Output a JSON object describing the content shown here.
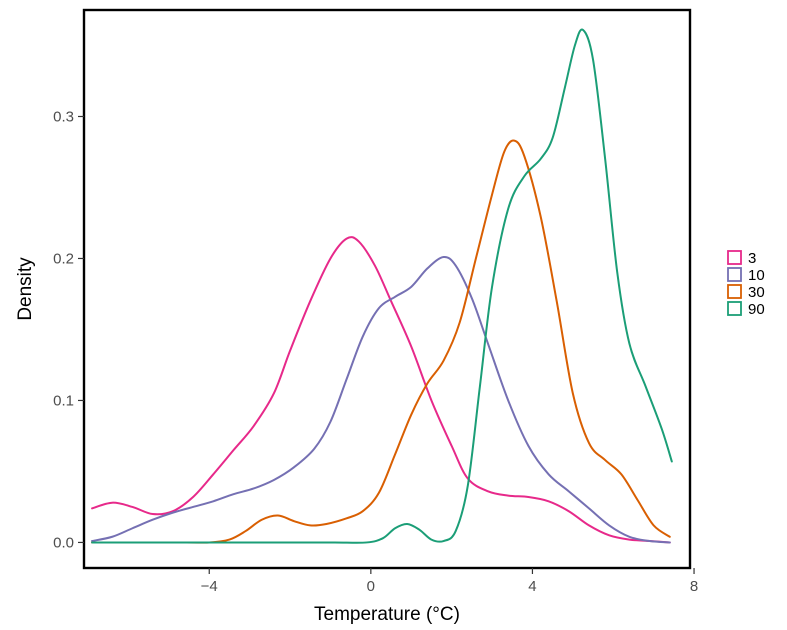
{
  "chart_data": {
    "type": "line",
    "title": "",
    "xlabel": "Temperature (°C)",
    "ylabel": "Density",
    "xlim": [
      -7.1,
      7.9
    ],
    "ylim": [
      -0.018,
      0.375
    ],
    "x_ticks": [
      -4,
      0,
      4,
      8
    ],
    "x_tick_labels": [
      "−4",
      "0",
      "4",
      "8"
    ],
    "y_ticks": [
      0.0,
      0.1,
      0.2,
      0.3
    ],
    "y_tick_labels": [
      "0.0",
      "0.1",
      "0.2",
      "0.3"
    ],
    "grid": false,
    "legend_position": "right",
    "series": [
      {
        "name": "3",
        "color": "#e7298a",
        "points": [
          [
            -6.9,
            0.024
          ],
          [
            -6.4,
            0.028
          ],
          [
            -5.9,
            0.025
          ],
          [
            -5.4,
            0.02
          ],
          [
            -4.9,
            0.022
          ],
          [
            -4.4,
            0.032
          ],
          [
            -3.9,
            0.048
          ],
          [
            -3.4,
            0.065
          ],
          [
            -2.9,
            0.082
          ],
          [
            -2.4,
            0.105
          ],
          [
            -2.0,
            0.135
          ],
          [
            -1.5,
            0.17
          ],
          [
            -1.0,
            0.2
          ],
          [
            -0.6,
            0.214
          ],
          [
            -0.3,
            0.212
          ],
          [
            0.1,
            0.195
          ],
          [
            0.5,
            0.17
          ],
          [
            1.0,
            0.138
          ],
          [
            1.5,
            0.1
          ],
          [
            2.0,
            0.068
          ],
          [
            2.4,
            0.045
          ],
          [
            2.9,
            0.036
          ],
          [
            3.4,
            0.033
          ],
          [
            3.9,
            0.032
          ],
          [
            4.4,
            0.029
          ],
          [
            4.9,
            0.022
          ],
          [
            5.4,
            0.012
          ],
          [
            5.9,
            0.005
          ],
          [
            6.4,
            0.002
          ],
          [
            6.9,
            0.001
          ],
          [
            7.4,
            0.0
          ]
        ]
      },
      {
        "name": "10",
        "color": "#7570b3",
        "points": [
          [
            -6.9,
            0.001
          ],
          [
            -6.4,
            0.004
          ],
          [
            -5.9,
            0.01
          ],
          [
            -5.4,
            0.016
          ],
          [
            -4.9,
            0.021
          ],
          [
            -4.4,
            0.025
          ],
          [
            -3.9,
            0.029
          ],
          [
            -3.4,
            0.034
          ],
          [
            -2.9,
            0.038
          ],
          [
            -2.4,
            0.044
          ],
          [
            -1.9,
            0.053
          ],
          [
            -1.4,
            0.066
          ],
          [
            -1.0,
            0.085
          ],
          [
            -0.6,
            0.115
          ],
          [
            -0.2,
            0.145
          ],
          [
            0.2,
            0.165
          ],
          [
            0.6,
            0.173
          ],
          [
            1.0,
            0.18
          ],
          [
            1.4,
            0.193
          ],
          [
            1.8,
            0.201
          ],
          [
            2.1,
            0.195
          ],
          [
            2.5,
            0.172
          ],
          [
            2.9,
            0.14
          ],
          [
            3.4,
            0.1
          ],
          [
            3.9,
            0.068
          ],
          [
            4.4,
            0.048
          ],
          [
            4.9,
            0.036
          ],
          [
            5.4,
            0.024
          ],
          [
            5.9,
            0.012
          ],
          [
            6.4,
            0.004
          ],
          [
            6.9,
            0.001
          ],
          [
            7.4,
            0.0
          ]
        ]
      },
      {
        "name": "30",
        "color": "#d95f02",
        "points": [
          [
            -6.9,
            0.0
          ],
          [
            -5.9,
            0.0
          ],
          [
            -4.9,
            0.0
          ],
          [
            -4.0,
            0.0
          ],
          [
            -3.5,
            0.002
          ],
          [
            -3.1,
            0.008
          ],
          [
            -2.7,
            0.016
          ],
          [
            -2.3,
            0.019
          ],
          [
            -1.9,
            0.015
          ],
          [
            -1.5,
            0.012
          ],
          [
            -1.1,
            0.013
          ],
          [
            -0.6,
            0.017
          ],
          [
            -0.2,
            0.022
          ],
          [
            0.2,
            0.035
          ],
          [
            0.6,
            0.062
          ],
          [
            1.0,
            0.09
          ],
          [
            1.4,
            0.112
          ],
          [
            1.8,
            0.128
          ],
          [
            2.2,
            0.155
          ],
          [
            2.6,
            0.2
          ],
          [
            3.0,
            0.245
          ],
          [
            3.3,
            0.275
          ],
          [
            3.55,
            0.283
          ],
          [
            3.8,
            0.272
          ],
          [
            4.2,
            0.23
          ],
          [
            4.6,
            0.17
          ],
          [
            5.0,
            0.105
          ],
          [
            5.4,
            0.07
          ],
          [
            5.8,
            0.058
          ],
          [
            6.2,
            0.048
          ],
          [
            6.6,
            0.03
          ],
          [
            7.0,
            0.012
          ],
          [
            7.4,
            0.004
          ]
        ]
      },
      {
        "name": "90",
        "color": "#1b9e77",
        "points": [
          [
            -6.9,
            0.0
          ],
          [
            -5.9,
            0.0
          ],
          [
            -4.9,
            0.0
          ],
          [
            -3.9,
            0.0
          ],
          [
            -2.9,
            0.0
          ],
          [
            -1.9,
            0.0
          ],
          [
            -0.9,
            0.0
          ],
          [
            -0.1,
            0.0
          ],
          [
            0.3,
            0.003
          ],
          [
            0.6,
            0.01
          ],
          [
            0.9,
            0.013
          ],
          [
            1.2,
            0.009
          ],
          [
            1.5,
            0.002
          ],
          [
            1.8,
            0.001
          ],
          [
            2.1,
            0.008
          ],
          [
            2.4,
            0.04
          ],
          [
            2.7,
            0.11
          ],
          [
            3.0,
            0.18
          ],
          [
            3.4,
            0.235
          ],
          [
            3.8,
            0.258
          ],
          [
            4.2,
            0.27
          ],
          [
            4.5,
            0.285
          ],
          [
            4.8,
            0.32
          ],
          [
            5.05,
            0.35
          ],
          [
            5.25,
            0.361
          ],
          [
            5.5,
            0.34
          ],
          [
            5.8,
            0.27
          ],
          [
            6.1,
            0.19
          ],
          [
            6.4,
            0.14
          ],
          [
            6.8,
            0.11
          ],
          [
            7.2,
            0.08
          ],
          [
            7.45,
            0.057
          ]
        ]
      }
    ]
  },
  "legend": {
    "items": [
      {
        "label": "3",
        "color": "#e7298a"
      },
      {
        "label": "10",
        "color": "#7570b3"
      },
      {
        "label": "30",
        "color": "#d95f02"
      },
      {
        "label": "90",
        "color": "#1b9e77"
      }
    ]
  }
}
